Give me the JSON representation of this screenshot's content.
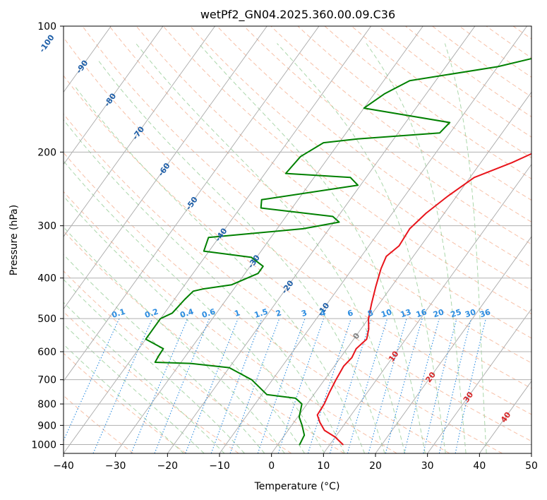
{
  "chart_data": {
    "type": "line",
    "title": "wetPf2_GN04.2025.360.00.09.C36",
    "xlabel": "Temperature (°C)",
    "ylabel": "Pressure (hPa)",
    "xlim": [
      -40,
      50
    ],
    "ylim": [
      1050,
      100
    ],
    "y_scale": "log",
    "grid": true,
    "x_ticks": [
      "−40",
      "−30",
      "−20",
      "−10",
      "0",
      "10",
      "20",
      "30",
      "40",
      "50"
    ],
    "x_tick_values": [
      -40,
      -30,
      -20,
      -10,
      0,
      10,
      20,
      30,
      40,
      50
    ],
    "y_ticks": [
      "100",
      "200",
      "300",
      "400",
      "500",
      "600",
      "700",
      "800",
      "900",
      "1000"
    ],
    "y_tick_values": [
      100,
      200,
      300,
      400,
      500,
      600,
      700,
      800,
      900,
      1000
    ],
    "series": [
      {
        "color": "#e8141b",
        "points": [
          [
            12.5,
            1000
          ],
          [
            10,
            960
          ],
          [
            7,
            925
          ],
          [
            5,
            885
          ],
          [
            3.5,
            850
          ],
          [
            3.3,
            800
          ],
          [
            2.7,
            750
          ],
          [
            2.2,
            700
          ],
          [
            1.8,
            650
          ],
          [
            2.2,
            620
          ],
          [
            1.8,
            590
          ],
          [
            2.5,
            560
          ],
          [
            1.5,
            530
          ],
          [
            0,
            500
          ],
          [
            -1.5,
            460
          ],
          [
            -3,
            420
          ],
          [
            -4.5,
            380
          ],
          [
            -5.2,
            355
          ],
          [
            -4.2,
            335
          ],
          [
            -4.5,
            305
          ],
          [
            -3.5,
            280
          ],
          [
            -1.7,
            255
          ],
          [
            0.8,
            230
          ],
          [
            6,
            212
          ],
          [
            9.5,
            198
          ],
          [
            10.3,
            185
          ],
          [
            10.5,
            175
          ],
          [
            13,
            160
          ],
          [
            16,
            142
          ],
          [
            18,
            130
          ],
          [
            20,
            118
          ],
          [
            21.5,
            110
          ],
          [
            24,
            100
          ]
        ]
      },
      {
        "color": "#008000",
        "points": [
          [
            4.2,
            1000
          ],
          [
            3.8,
            950
          ],
          [
            2,
            900
          ],
          [
            0.3,
            860
          ],
          [
            -1,
            800
          ],
          [
            -3,
            775
          ],
          [
            -9,
            760
          ],
          [
            -14,
            700
          ],
          [
            -20,
            655
          ],
          [
            -28,
            640
          ],
          [
            -35,
            636
          ],
          [
            -35.2,
            615
          ],
          [
            -35.3,
            590
          ],
          [
            -40,
            560
          ],
          [
            -40,
            500
          ],
          [
            -38.5,
            485
          ],
          [
            -38,
            450
          ],
          [
            -37.5,
            430
          ],
          [
            -36,
            425
          ],
          [
            -31,
            415
          ],
          [
            -27.5,
            390
          ],
          [
            -27.5,
            375
          ],
          [
            -31,
            357
          ],
          [
            -41,
            345
          ],
          [
            -42,
            320
          ],
          [
            -25,
            305
          ],
          [
            -19,
            294
          ],
          [
            -21,
            285
          ],
          [
            -36,
            272
          ],
          [
            -37,
            260
          ],
          [
            -20.5,
            240
          ],
          [
            -23,
            230
          ],
          [
            -36,
            225
          ],
          [
            -35.5,
            205
          ],
          [
            -33,
            190
          ],
          [
            -27,
            186
          ],
          [
            -12,
            180
          ],
          [
            -11.5,
            170
          ],
          [
            -30,
            157
          ],
          [
            -28,
            145
          ],
          [
            -25,
            135
          ],
          [
            -10,
            125
          ],
          [
            -2,
            117
          ],
          [
            -1.5,
            110
          ],
          [
            -3.5,
            102
          ],
          [
            -4,
            100
          ]
        ]
      }
    ],
    "isotherm_labels": [
      "-100",
      "-90",
      "-80",
      "-70",
      "-60",
      "-50",
      "-40",
      "-30",
      "-20",
      "-10"
    ],
    "mixing_ratio_labels": [
      "0.1",
      "0.2",
      "0.4",
      "0.6",
      "1",
      "1.5",
      "2",
      "3",
      "4",
      "6",
      "8",
      "10",
      "13",
      "16",
      "20",
      "25",
      "30",
      "36"
    ],
    "mixing_ratio_values": [
      0.1,
      0.2,
      0.4,
      0.6,
      1,
      1.5,
      2,
      3,
      4,
      6,
      8,
      10,
      13,
      16,
      20,
      25,
      30,
      36
    ],
    "mixing_ratio_top_hPa": 500,
    "lower_isotherm_labels": [
      "0",
      "10",
      "20",
      "30",
      "40"
    ],
    "colors": {
      "temperature": "#e8141b",
      "dewpoint": "#008000",
      "isotherm": "#a9a9a9",
      "isotherm_label": "#1f5fa8",
      "dry_adiabat": "#f4a582",
      "moist_adiabat": "#8fc98f",
      "mixing_ratio": "#2b8ce0",
      "lower_isotherm_label": "#d62728"
    }
  }
}
